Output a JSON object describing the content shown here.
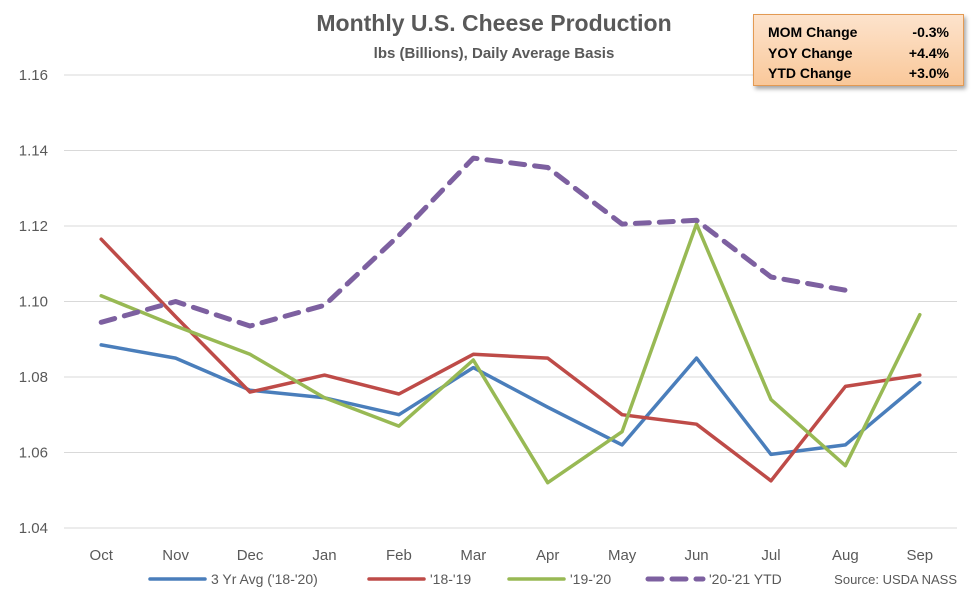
{
  "chart_data": {
    "type": "line",
    "title": "Monthly U.S. Cheese Production",
    "subtitle": "lbs (Billions), Daily Average Basis",
    "categories": [
      "Oct",
      "Nov",
      "Dec",
      "Jan",
      "Feb",
      "Mar",
      "Apr",
      "May",
      "Jun",
      "Jul",
      "Aug",
      "Sep"
    ],
    "ylim": [
      1.04,
      1.16
    ],
    "yticks": [
      "1.04",
      "1.06",
      "1.08",
      "1.10",
      "1.12",
      "1.14",
      "1.16"
    ],
    "grid": true,
    "legend_position": "bottom",
    "series": [
      {
        "name": "3 Yr Avg ('18-'20)",
        "color": "#4a7ebb",
        "dashed": false,
        "values": [
          1.0885,
          1.085,
          1.0765,
          1.0745,
          1.07,
          1.0825,
          1.072,
          1.062,
          1.085,
          1.0595,
          1.062,
          1.0785
        ]
      },
      {
        "name": "'18-'19",
        "color": "#be4b48",
        "dashed": false,
        "values": [
          1.1165,
          1.096,
          1.076,
          1.0805,
          1.0755,
          1.086,
          1.085,
          1.07,
          1.0675,
          1.0525,
          1.0775,
          1.0805
        ]
      },
      {
        "name": "'19-'20",
        "color": "#98b954",
        "dashed": false,
        "values": [
          1.1015,
          1.0935,
          1.086,
          1.0745,
          1.067,
          1.0845,
          1.052,
          1.0655,
          1.1205,
          1.074,
          1.0565,
          1.0965
        ]
      },
      {
        "name": "'20-'21 YTD",
        "color": "#7d60a0",
        "dashed": true,
        "values": [
          1.0945,
          1.1,
          1.0935,
          1.099,
          1.1175,
          1.138,
          1.1355,
          1.1205,
          1.1215,
          1.1065,
          1.103,
          null
        ]
      }
    ],
    "source": "Source: USDA NASS"
  },
  "stats_box": {
    "rows": [
      {
        "label": "MOM Change",
        "value": "-0.3%"
      },
      {
        "label": "YOY Change",
        "value": "+4.4%"
      },
      {
        "label": "YTD Change",
        "value": "+3.0%"
      }
    ],
    "background": "#fbd5b3",
    "border": "#e39a53"
  }
}
